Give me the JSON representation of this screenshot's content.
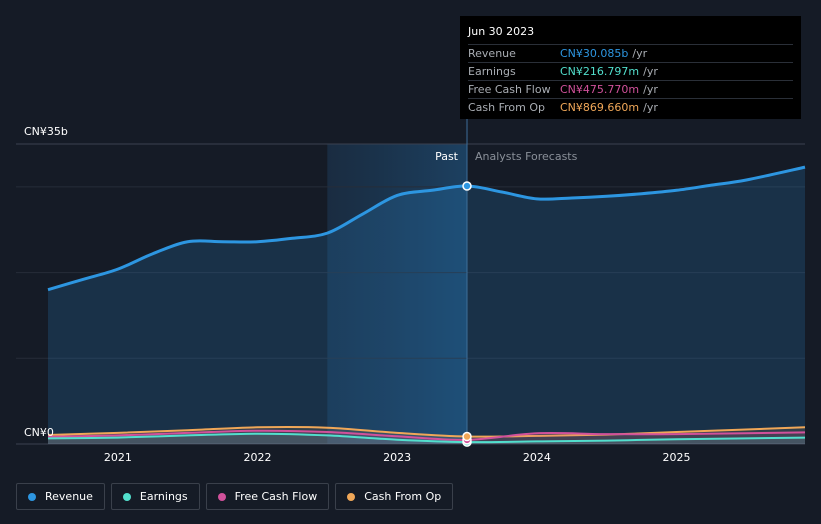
{
  "chart_data": {
    "type": "area",
    "y_axis": {
      "top_label": "CN¥35b",
      "bottom_label": "CN¥0",
      "ylim": [
        0,
        35
      ]
    },
    "x_ticks": [
      "2021",
      "2022",
      "2023",
      "2024",
      "2025"
    ],
    "xlim": [
      2020.5,
      2025.92
    ],
    "divider_x": 2023.5,
    "shade_start_x": 2022.5,
    "past_label": "Past",
    "forecast_label": "Analysts Forecasts",
    "highlight_x": 2023.5,
    "series": [
      {
        "name": "Revenue",
        "color": "#2d96e1",
        "points": [
          [
            2020.5,
            18.0
          ],
          [
            2020.75,
            19.2
          ],
          [
            2021.0,
            20.4
          ],
          [
            2021.25,
            22.2
          ],
          [
            2021.5,
            23.6
          ],
          [
            2021.75,
            23.6
          ],
          [
            2022.0,
            23.6
          ],
          [
            2022.25,
            24.0
          ],
          [
            2022.5,
            24.6
          ],
          [
            2022.75,
            26.8
          ],
          [
            2023.0,
            29.0
          ],
          [
            2023.25,
            29.6
          ],
          [
            2023.5,
            30.1
          ],
          [
            2023.75,
            29.4
          ],
          [
            2024.0,
            28.6
          ],
          [
            2024.25,
            28.7
          ],
          [
            2024.5,
            28.9
          ],
          [
            2024.75,
            29.2
          ],
          [
            2025.0,
            29.6
          ],
          [
            2025.25,
            30.2
          ],
          [
            2025.5,
            30.8
          ],
          [
            2025.92,
            32.3
          ]
        ]
      },
      {
        "name": "Earnings",
        "color": "#52dfcd",
        "points": [
          [
            2020.5,
            0.65
          ],
          [
            2021.0,
            0.75
          ],
          [
            2021.5,
            1.0
          ],
          [
            2022.0,
            1.2
          ],
          [
            2022.5,
            1.0
          ],
          [
            2023.0,
            0.5
          ],
          [
            2023.5,
            0.22
          ],
          [
            2024.0,
            0.3
          ],
          [
            2024.5,
            0.4
          ],
          [
            2025.0,
            0.55
          ],
          [
            2025.92,
            0.75
          ]
        ]
      },
      {
        "name": "Free Cash Flow",
        "color": "#d1519b",
        "points": [
          [
            2020.5,
            0.85
          ],
          [
            2021.0,
            1.0
          ],
          [
            2021.5,
            1.3
          ],
          [
            2022.0,
            1.55
          ],
          [
            2022.5,
            1.4
          ],
          [
            2023.0,
            0.9
          ],
          [
            2023.5,
            0.48
          ],
          [
            2024.0,
            1.25
          ],
          [
            2024.5,
            1.15
          ],
          [
            2025.0,
            1.15
          ],
          [
            2025.92,
            1.35
          ]
        ]
      },
      {
        "name": "Cash From Op",
        "color": "#f0a758",
        "points": [
          [
            2020.5,
            1.05
          ],
          [
            2021.0,
            1.3
          ],
          [
            2021.5,
            1.6
          ],
          [
            2022.0,
            1.95
          ],
          [
            2022.5,
            1.9
          ],
          [
            2023.0,
            1.3
          ],
          [
            2023.5,
            0.87
          ],
          [
            2024.0,
            0.95
          ],
          [
            2024.5,
            1.1
          ],
          [
            2025.0,
            1.4
          ],
          [
            2025.92,
            1.95
          ]
        ]
      }
    ]
  },
  "tooltip": {
    "date": "Jun 30 2023",
    "rows": [
      {
        "label": "Revenue",
        "value": "CN¥30.085b",
        "unit": "/yr",
        "color": "#2d96e1"
      },
      {
        "label": "Earnings",
        "value": "CN¥216.797m",
        "unit": "/yr",
        "color": "#52dfcd"
      },
      {
        "label": "Free Cash Flow",
        "value": "CN¥475.770m",
        "unit": "/yr",
        "color": "#d1519b"
      },
      {
        "label": "Cash From Op",
        "value": "CN¥869.660m",
        "unit": "/yr",
        "color": "#f0a758"
      }
    ]
  },
  "legend": [
    {
      "label": "Revenue",
      "color": "#2d96e1"
    },
    {
      "label": "Earnings",
      "color": "#52dfcd"
    },
    {
      "label": "Free Cash Flow",
      "color": "#d1519b"
    },
    {
      "label": "Cash From Op",
      "color": "#f0a758"
    }
  ]
}
